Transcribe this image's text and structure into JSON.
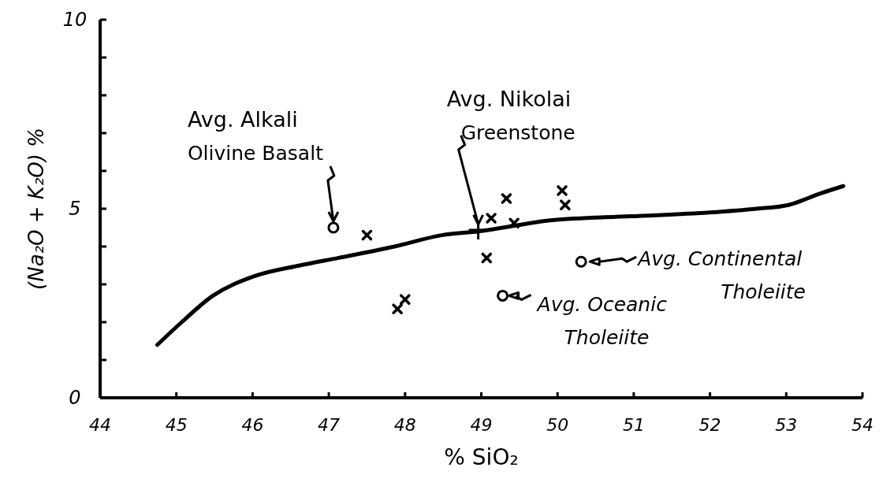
{
  "chart_data": {
    "type": "scatter",
    "xlabel": "% SiO₂",
    "ylabel": "(Na₂O + K₂O) %",
    "xlim": [
      44,
      54
    ],
    "xticks": [
      44,
      45,
      46,
      47,
      48,
      49,
      50,
      51,
      52,
      53,
      54
    ],
    "ylim": [
      0,
      10
    ],
    "yticks": [
      0,
      {
        "value": 1,
        "label": null
      },
      {
        "value": 2,
        "label": null
      },
      {
        "value": 3,
        "label": null
      },
      {
        "value": 4,
        "label": null
      },
      5,
      {
        "value": 6,
        "label": null
      },
      {
        "value": 7,
        "label": null
      },
      {
        "value": 8,
        "label": null
      },
      {
        "value": 9,
        "label": null
      },
      10
    ],
    "grid": false,
    "series": [
      {
        "type": "line",
        "color": "#000000",
        "marker": "none",
        "line_style": "solid",
        "x": [
          44.75,
          45.07,
          45.48,
          46.0,
          46.62,
          47.13,
          47.86,
          48.48,
          48.96,
          49.93,
          50.96,
          51.99,
          52.61,
          53.03,
          53.44,
          53.75
        ],
        "values": [
          1.4,
          2.0,
          2.7,
          3.2,
          3.5,
          3.7,
          4.0,
          4.3,
          4.4,
          4.7,
          4.8,
          4.9,
          5.0,
          5.1,
          5.4,
          5.6
        ]
      },
      {
        "color": "#000000",
        "marker": "cross",
        "x": [
          47.5,
          49.13,
          49.33,
          49.43,
          50.06,
          50.1,
          49.07,
          48.0,
          47.9
        ],
        "values": [
          4.3,
          4.75,
          5.27,
          4.62,
          5.48,
          5.1,
          3.7,
          2.6,
          2.35
        ]
      },
      {
        "color": "#000000",
        "marker": "circle",
        "x": [
          47.06,
          50.31,
          49.28
        ],
        "values": [
          4.5,
          3.6,
          2.7
        ]
      },
      {
        "color": "#000000",
        "x": [
          48.96
        ],
        "values": [
          4.44
        ]
      }
    ],
    "annotations": [
      {
        "text": "Avg. Alkali\nOlivine Basalt",
        "x": 47.06,
        "y": 4.5
      },
      {
        "text": "Avg. Nikolai\nGreenstone",
        "x": 48.96,
        "y": 4.44
      },
      {
        "text": "Avg. Continental\nTholeiite",
        "x": 50.31,
        "y": 3.6
      },
      {
        "text": "Avg. Oceanic\nTholeiite",
        "x": 49.28,
        "y": 2.7
      }
    ]
  }
}
